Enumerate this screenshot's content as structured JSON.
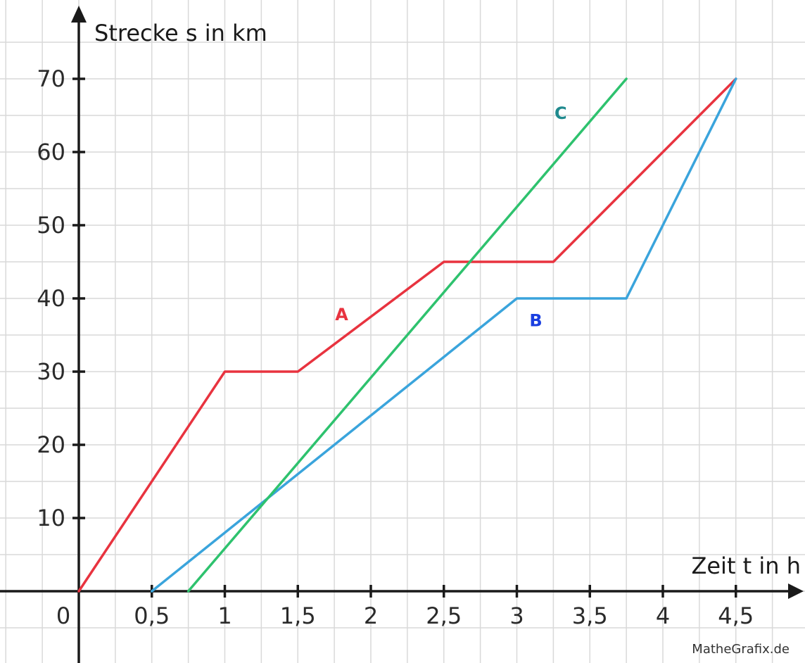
{
  "chart_data": {
    "type": "line",
    "ylabel": "Strecke s in km",
    "xlabel": "Zeit t in h",
    "xlim": [
      -0.5,
      4.95
    ],
    "ylim": [
      -9.5,
      79
    ],
    "grid": true,
    "grid_step_x": 0.25,
    "grid_step_y": 5,
    "origin_label": "0",
    "x_ticks": [
      {
        "value": 0.5,
        "label": "0,5"
      },
      {
        "value": 1,
        "label": "1"
      },
      {
        "value": 1.5,
        "label": "1,5"
      },
      {
        "value": 2,
        "label": "2"
      },
      {
        "value": 2.5,
        "label": "2,5"
      },
      {
        "value": 3,
        "label": "3"
      },
      {
        "value": 3.5,
        "label": "3,5"
      },
      {
        "value": 4,
        "label": "4"
      },
      {
        "value": 4.5,
        "label": "4,5"
      }
    ],
    "y_ticks": [
      {
        "value": 10,
        "label": "10"
      },
      {
        "value": 20,
        "label": "20"
      },
      {
        "value": 30,
        "label": "30"
      },
      {
        "value": 40,
        "label": "40"
      },
      {
        "value": 50,
        "label": "50"
      },
      {
        "value": 60,
        "label": "60"
      },
      {
        "value": 70,
        "label": "70"
      }
    ],
    "series": [
      {
        "name": "A",
        "color": "#e8333f",
        "label_at": [
          1.8,
          37
        ],
        "points": [
          [
            0,
            0
          ],
          [
            1,
            30
          ],
          [
            1.5,
            30
          ],
          [
            2.5,
            45
          ],
          [
            3.25,
            45
          ],
          [
            4.5,
            70
          ]
        ]
      },
      {
        "name": "B",
        "color": "#3aa4dc",
        "label_color": "#1a3fe0",
        "label_at": [
          3.13,
          36.2
        ],
        "points": [
          [
            0.5,
            0
          ],
          [
            3,
            40
          ],
          [
            3.75,
            40
          ],
          [
            4.5,
            70
          ]
        ]
      },
      {
        "name": "C",
        "color": "#2ec26e",
        "label_color": "#1f8a8e",
        "label_at": [
          3.3,
          64.5
        ],
        "points": [
          [
            0.75,
            0
          ],
          [
            3.75,
            70
          ]
        ]
      }
    ],
    "credit": "MatheGrafix.de"
  }
}
